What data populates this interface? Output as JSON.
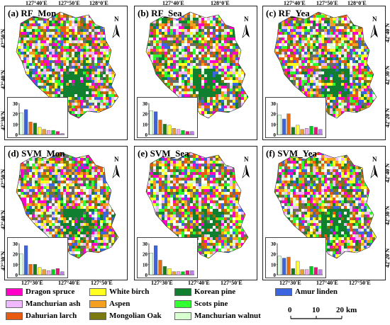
{
  "panels": [
    {
      "id": "a",
      "title": "(a) RF_Mon",
      "values": [
        21,
        24,
        12,
        11,
        7,
        5,
        4,
        4,
        3,
        1
      ],
      "top_ticks": [
        "127°40'E",
        "127°50'E",
        "128°0'E"
      ],
      "bottom_ticks": [],
      "left_ticks": [
        "42°50'N",
        "42°40'N",
        "42°30'N"
      ],
      "right_ticks": []
    },
    {
      "id": "b",
      "title": "(b) RF_Sea",
      "values": [
        23,
        22,
        14,
        10,
        9,
        6,
        5,
        4,
        3,
        3
      ],
      "top_ticks": [
        "127°40'E",
        "128°0'E"
      ],
      "bottom_ticks": [],
      "left_ticks": [],
      "right_ticks": []
    },
    {
      "id": "c",
      "title": "(c) RF_Yea",
      "values": [
        19,
        15,
        20,
        7,
        9,
        5,
        6,
        8,
        7,
        5
      ],
      "top_ticks": [
        "127°40'E",
        "127°50'E",
        "128°0'E"
      ],
      "bottom_ticks": [],
      "left_ticks": [],
      "right_ticks": [
        "42°40'N",
        "42°30'N",
        "42°20'N"
      ]
    },
    {
      "id": "d",
      "title": "(d) SVM_Mon",
      "values": [
        20,
        28,
        10,
        10,
        7,
        5,
        4,
        5,
        6,
        3
      ],
      "top_ticks": [],
      "bottom_ticks": [
        "127°30'E",
        "127°40'E",
        "127°50'E"
      ],
      "left_ticks": [
        "42°50'N",
        "42°40'N",
        "42°30'N"
      ],
      "right_ticks": []
    },
    {
      "id": "e",
      "title": "(e) SVM_Sea",
      "values": [
        21,
        28,
        14,
        8,
        6,
        3,
        3,
        3,
        4,
        4
      ],
      "top_ticks": [],
      "bottom_ticks": [
        "127°30'E",
        "127°40'E",
        "127°50'E"
      ],
      "left_ticks": [],
      "right_ticks": []
    },
    {
      "id": "f",
      "title": "(f) SVM_Yea",
      "values": [
        18,
        16,
        17,
        6,
        13,
        5,
        5,
        8,
        7,
        5
      ],
      "top_ticks": [],
      "bottom_ticks": [
        "127°30'E",
        "127°40'E",
        "127°50'E"
      ],
      "left_ticks": [],
      "right_ticks": [
        "42°40'N",
        "42°30'N",
        "42°20'N"
      ]
    }
  ],
  "histogram": {
    "y_ticks": [
      "30",
      "20",
      "10",
      "0"
    ],
    "ymax": 30,
    "bar_colors": [
      "#e0ffe0",
      "#3a64e0",
      "#e56a10",
      "#1a7a1a",
      "#ffff33",
      "#e8a030",
      "#f4a8ee",
      "#00cc20",
      "#e8147a",
      "#c080f0"
    ]
  },
  "north_label": "N",
  "legend": [
    {
      "label": "Dragon spruce",
      "color": "#ff00c8"
    },
    {
      "label": "Manchurian ash",
      "color": "#f0b8ff"
    },
    {
      "label": "Dahurian larch",
      "color": "#e85a10"
    },
    {
      "label": "White birch",
      "color": "#ffff20"
    },
    {
      "label": "Aspen",
      "color": "#f5a020"
    },
    {
      "label": "Mongolian Oak",
      "color": "#7a7a10"
    },
    {
      "label": "Korean pine",
      "color": "#108030"
    },
    {
      "label": "Scots pine",
      "color": "#30ff30"
    },
    {
      "label": "Manchurian walnut",
      "color": "#d8ffd0"
    },
    {
      "label": "Amur linden",
      "color": "#3a64e0"
    }
  ],
  "scale_bar": {
    "ticks": [
      "0",
      "10",
      "20"
    ],
    "unit": "km"
  }
}
